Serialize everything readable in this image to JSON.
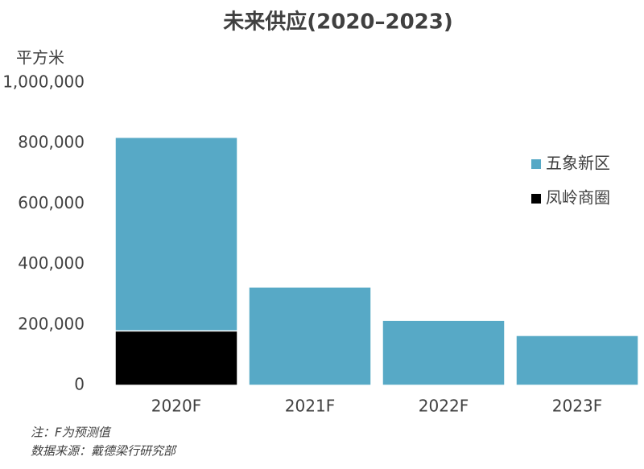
{
  "chart_data": {
    "type": "bar",
    "stacked": true,
    "title": "未来供应(2020–2023)",
    "y_label": "平方米",
    "categories": [
      "2020F",
      "2021F",
      "2022F",
      "2023F"
    ],
    "series": [
      {
        "name": "五象新区",
        "color": "#57a9c6",
        "values": [
          640000,
          325000,
          215000,
          165000
        ]
      },
      {
        "name": "凤岭商圈",
        "color": "#000000",
        "values": [
          180000,
          null,
          null,
          null
        ]
      }
    ],
    "ylim": [
      0,
      1000000
    ],
    "yticks": [
      0,
      {
        "value": 200000,
        "label": "200,000"
      },
      {
        "value": 400000,
        "label": "400,000"
      },
      {
        "value": 600000,
        "label": "600,000"
      },
      {
        "value": 800000,
        "label": "800,000"
      },
      {
        "value": 1000000,
        "label": "1,000,000"
      }
    ],
    "grid": false,
    "legend": "right",
    "notes": [
      "注：F为预测值",
      "数据来源：戴德梁行研究部"
    ]
  }
}
